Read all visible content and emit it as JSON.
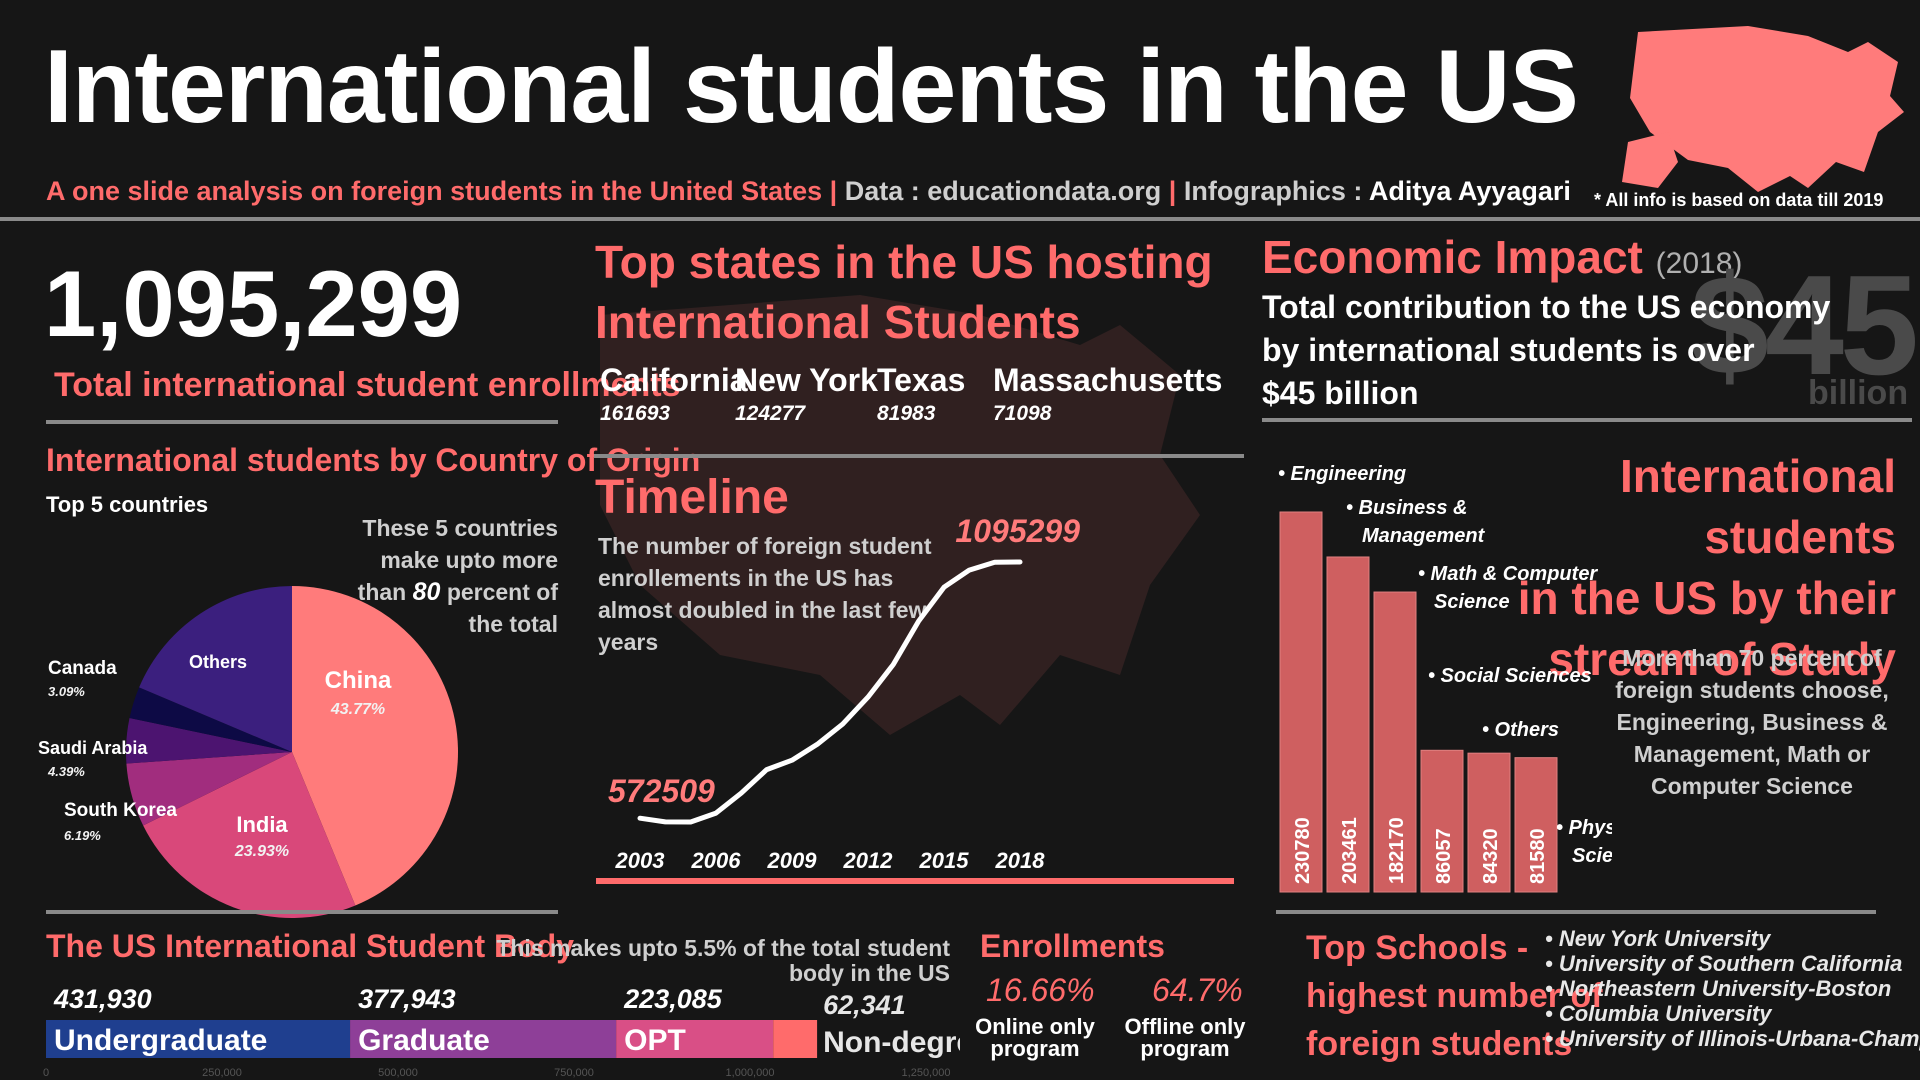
{
  "header": {
    "title": "International students in the US",
    "subtitle": "A one slide analysis on foreign students in the United States",
    "data_label": "Data : educationdata.org",
    "info_prefix": "Infographics : ",
    "info_author": "Aditya Ayyagari",
    "note": "* All info is based on data till 2019"
  },
  "total": {
    "value": "1,095,299",
    "label": "Total international student enrollments"
  },
  "origin": {
    "title": "International students by Country of Origin",
    "subtitle": "Top 5 countries",
    "note_part1": "These  5 countries make upto more than",
    "note_number": "80",
    "note_part2": "percent of the total"
  },
  "states": {
    "title_line1": "Top states in the US hosting",
    "title_line2": "International Students",
    "items": [
      {
        "name": "California",
        "value": "161693"
      },
      {
        "name": "New York",
        "value": "124277"
      },
      {
        "name": "Texas",
        "value": "81983"
      },
      {
        "name": "Massachusetts",
        "value": "71098"
      }
    ]
  },
  "timeline": {
    "title": "Timeline",
    "desc": "The number of foreign student enrollements in the US has almost  doubled in the last  few years",
    "start_label": "572509",
    "end_label": "1095299"
  },
  "economic": {
    "title": "Economic Impact",
    "year": "(2018)",
    "line1": "Total contribution to the US economy",
    "line2": "by international students is over",
    "line3": "$45 billion",
    "big": "$45",
    "big_unit": "billion"
  },
  "stream": {
    "title_line1": "International students",
    "title_line2": "in the US by their",
    "title_line3": "stream of Study",
    "note": "More than 70 percent of foreign students choose, Engineering, Business & Management, Math or Computer Science"
  },
  "body": {
    "title": "The US International Student Body",
    "note": "This makes upto 5.5% of the total student body in the US"
  },
  "enrollments": {
    "title": "Enrollments",
    "online_pct": "16.66%",
    "online_label": "Online only program",
    "offline_pct": "64.7%",
    "offline_label": "Offline only program"
  },
  "schools": {
    "title_line1": "Top Schools -",
    "title_line2": "highest number of",
    "title_line3": "foreign students",
    "items": [
      "New York University",
      "University of Southern California",
      "Northeastern University-Boston",
      "Columbia University",
      "University of Illinois-Urbana-Champaign"
    ]
  },
  "chart_data": [
    {
      "type": "pie",
      "title": "International students by Country of Origin",
      "labels": [
        "China",
        "India",
        "South Korea",
        "Saudi Arabia",
        "Canada",
        "Others"
      ],
      "values": [
        43.77,
        23.93,
        6.19,
        4.39,
        3.09,
        18.63
      ],
      "value_labels": [
        "43.77%",
        "23.93%",
        "6.19%",
        "4.39%",
        "3.09%",
        ""
      ],
      "colors": [
        "#ff7b7b",
        "#d9487a",
        "#a12d7e",
        "#4c1470",
        "#0d0a45",
        "#3b1f7e"
      ]
    },
    {
      "type": "line",
      "title": "Timeline",
      "x": [
        2003,
        2004,
        2005,
        2006,
        2007,
        2008,
        2009,
        2010,
        2011,
        2012,
        2013,
        2014,
        2015,
        2016,
        2017,
        2018
      ],
      "y": [
        572509,
        565039,
        564766,
        582984,
        623805,
        671616,
        690923,
        723277,
        764495,
        819644,
        886052,
        974926,
        1043839,
        1078822,
        1094792,
        1095299
      ],
      "xticks": [
        2003,
        2006,
        2009,
        2012,
        2015,
        2018
      ]
    },
    {
      "type": "bar",
      "title": "International students in the US by their stream of Study",
      "categories": [
        "Engineering",
        "Business & Management",
        "Math & Computer Science",
        "Social Sciences",
        "Others",
        "Physical & Life Sciences"
      ],
      "values": [
        230780,
        203461,
        182170,
        86057,
        84320,
        81580
      ]
    },
    {
      "type": "bar",
      "orientation": "horizontal-stacked",
      "title": "The US International Student Body",
      "categories": [
        "Undergraduate",
        "Graduate",
        "OPT",
        "Non-degree"
      ],
      "values": [
        431930,
        377943,
        223085,
        62341
      ],
      "value_labels": [
        "431,930",
        "377,943",
        "223,085",
        "62,341"
      ],
      "colors": [
        "#1f3f8f",
        "#8e3f98",
        "#d94f86",
        "#ff6b6b"
      ],
      "xticks": [
        "0",
        "250,000",
        "500,000",
        "750,000",
        "1,000,000",
        "1,250,000"
      ],
      "xlim": [
        0,
        1250000
      ]
    }
  ]
}
